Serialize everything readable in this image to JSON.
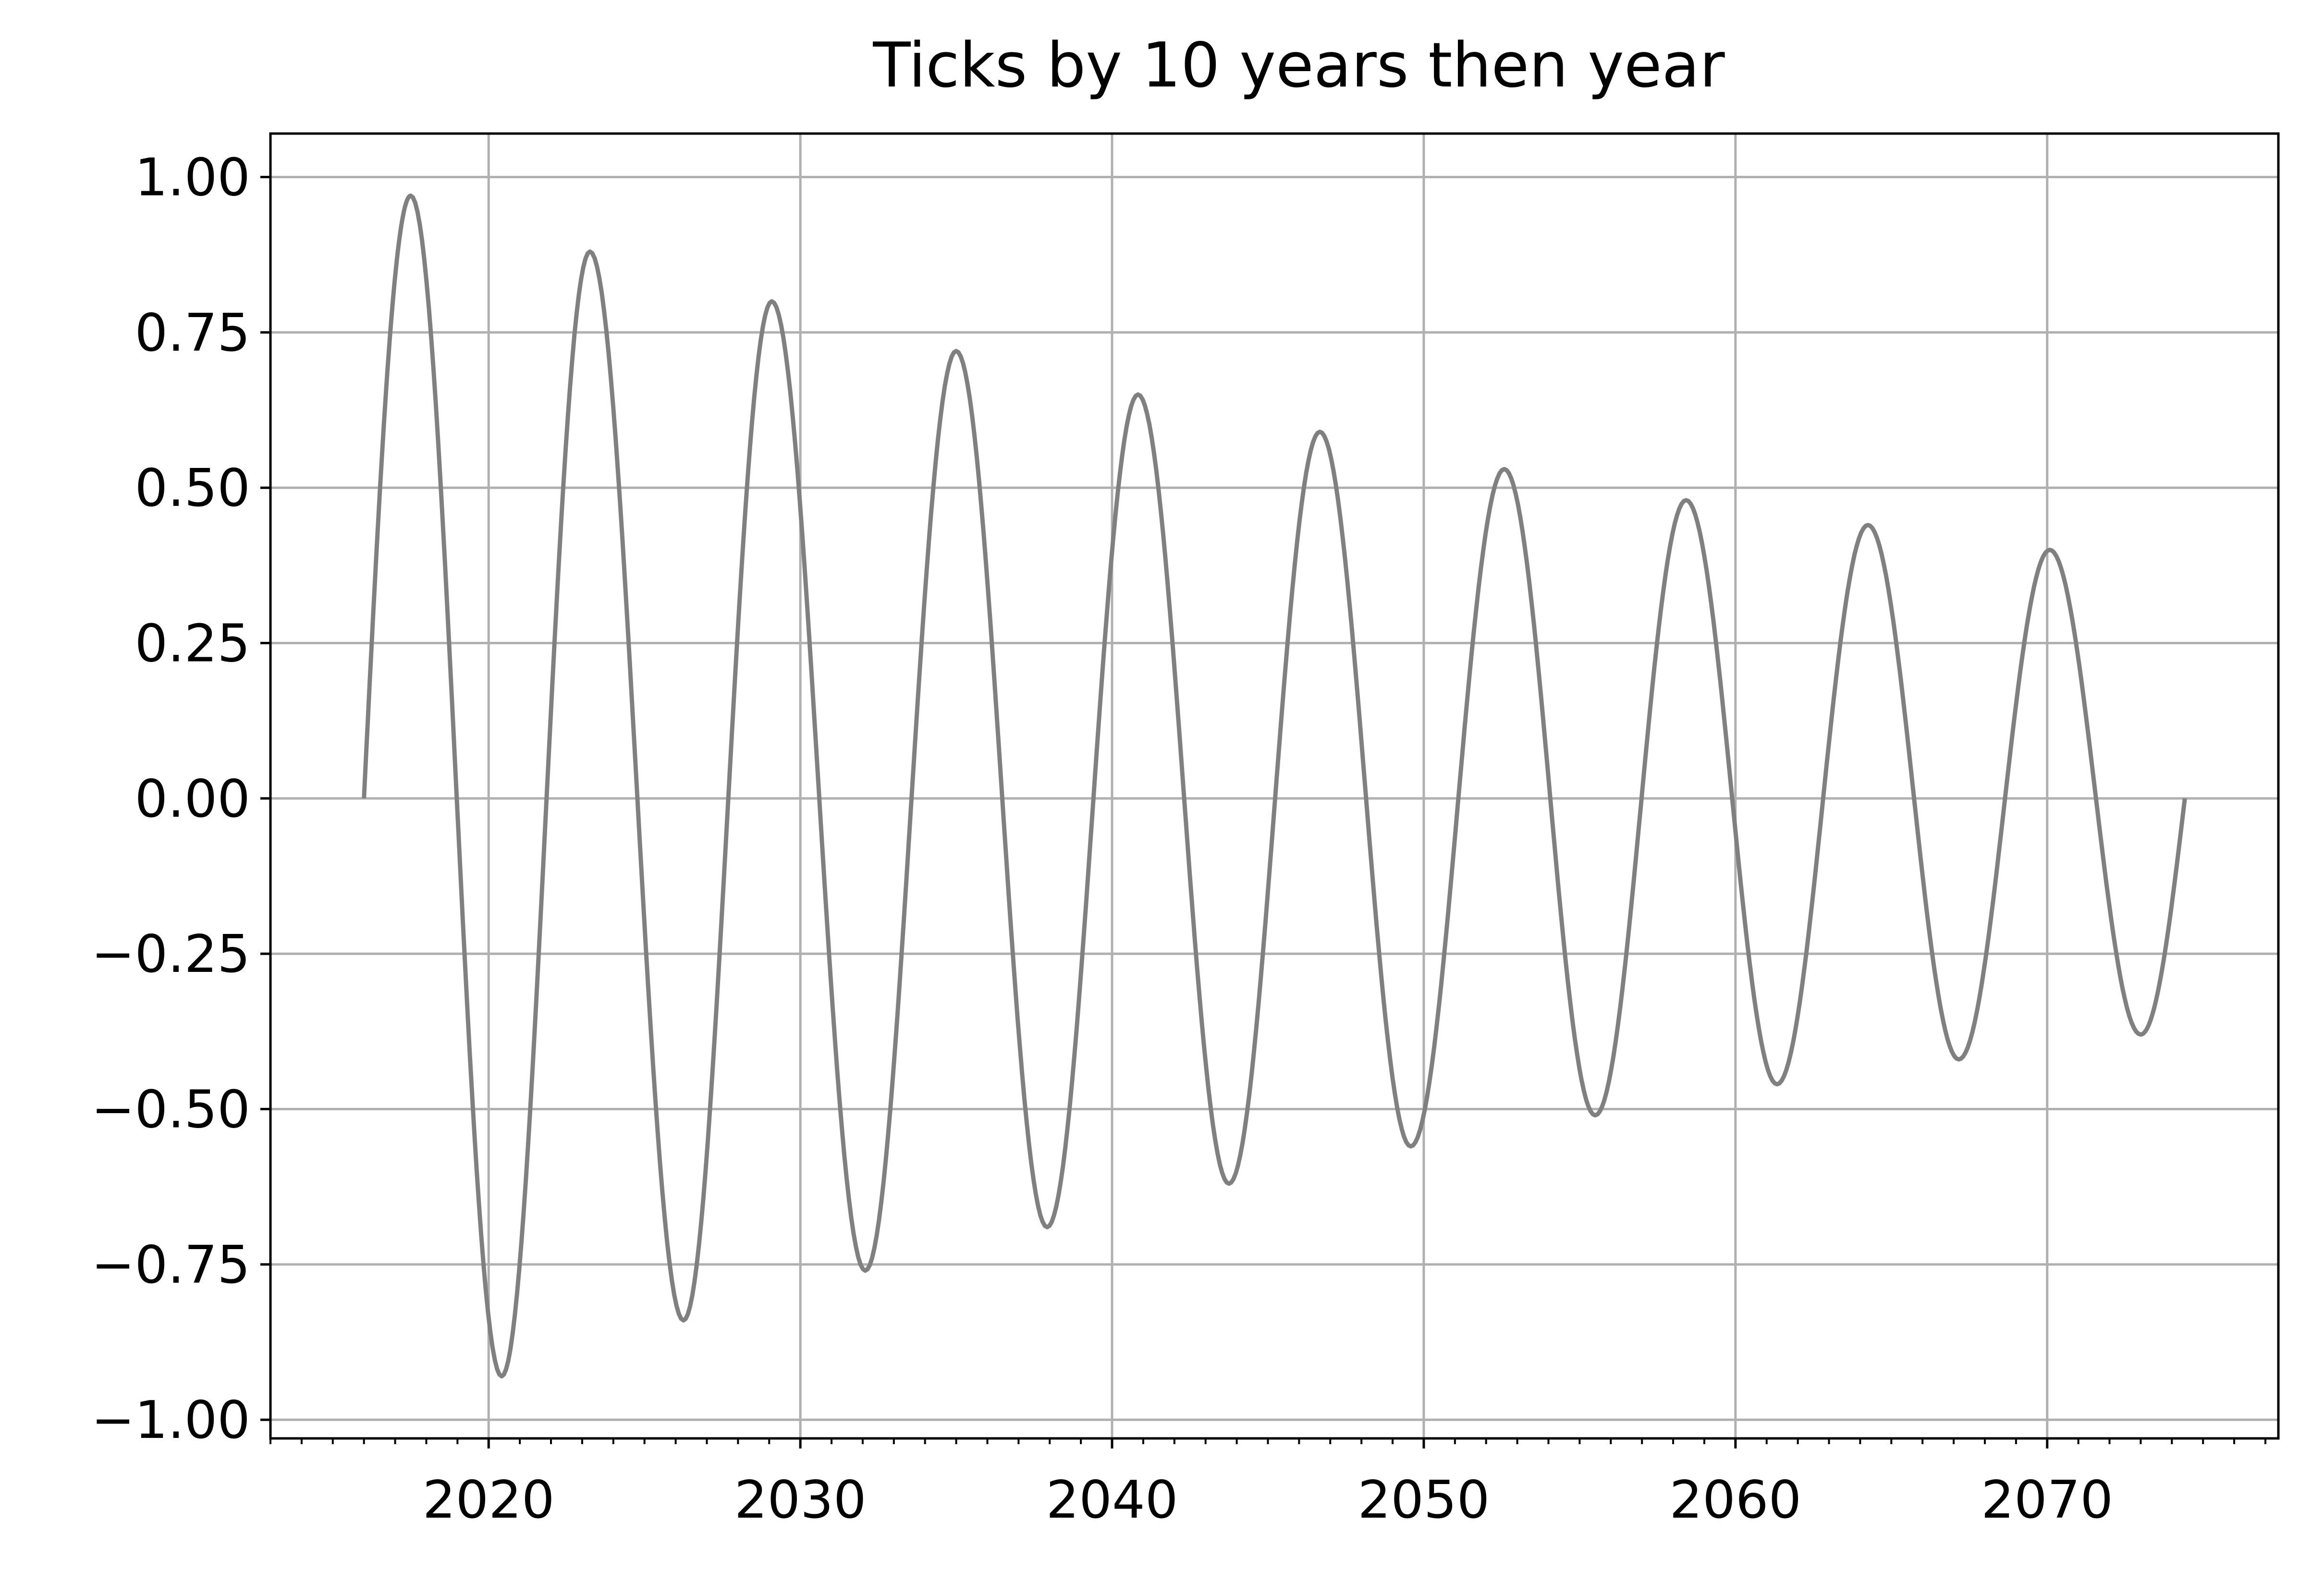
{
  "chart_data": {
    "type": "line",
    "title": "Ticks by 10 years then year",
    "xlabel": "",
    "ylabel": "",
    "x_type": "date",
    "xlim": [
      "2013-01-01",
      "2077-06-01"
    ],
    "ylim": [
      -1.03,
      1.07
    ],
    "grid": true,
    "legend": "none",
    "x_major_ticks": [
      "2020",
      "2030",
      "2040",
      "2050",
      "2060",
      "2070"
    ],
    "x_minor_tick_interval": "1 year",
    "y_ticks": [
      "1.00",
      "0.75",
      "0.50",
      "0.25",
      "0.00",
      "−0.25",
      "−0.50",
      "−0.75",
      "−1.00"
    ],
    "y_tick_values": [
      1.0,
      0.75,
      0.5,
      0.25,
      0.0,
      -0.25,
      -0.5,
      -0.75,
      -1.0
    ],
    "series": [
      {
        "color": "#808080",
        "x_start": "2016-01-01",
        "x_end": "2074-06-01",
        "peaks": [
          {
            "x": "2017-07-01",
            "y": 0.97
          },
          {
            "x": "2020-06-01",
            "y": -0.93
          },
          {
            "x": "2023-04-01",
            "y": 0.88
          },
          {
            "x": "2026-04-01",
            "y": -0.84
          },
          {
            "x": "2029-02-01",
            "y": 0.8
          },
          {
            "x": "2032-02-01",
            "y": -0.76
          },
          {
            "x": "2035-01-01",
            "y": 0.72
          },
          {
            "x": "2037-12-01",
            "y": -0.69
          },
          {
            "x": "2040-11-01",
            "y": 0.65
          },
          {
            "x": "2043-10-01",
            "y": -0.62
          },
          {
            "x": "2046-09-01",
            "y": 0.59
          },
          {
            "x": "2049-08-01",
            "y": -0.56
          },
          {
            "x": "2052-08-01",
            "y": 0.53
          },
          {
            "x": "2055-07-01",
            "y": -0.51
          },
          {
            "x": "2058-06-01",
            "y": 0.48
          },
          {
            "x": "2061-05-01",
            "y": -0.46
          },
          {
            "x": "2064-04-01",
            "y": 0.44
          },
          {
            "x": "2067-03-01",
            "y": -0.42
          },
          {
            "x": "2070-02-01",
            "y": 0.4
          },
          {
            "x": "2073-01-01",
            "y": -0.38
          }
        ]
      }
    ]
  },
  "colors": {
    "line": "#808080",
    "grid": "#b0b0b0",
    "axes": "#000000",
    "background": "#ffffff"
  }
}
